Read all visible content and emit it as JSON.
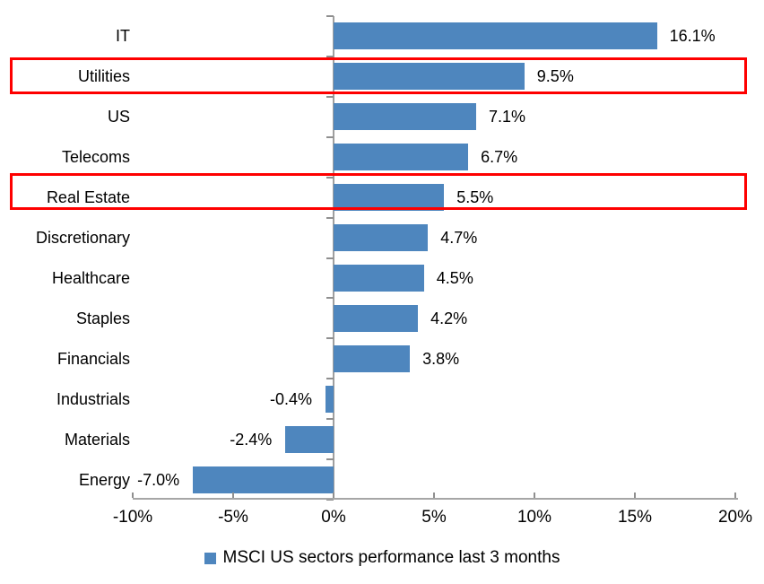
{
  "chart_data": {
    "type": "bar",
    "orientation": "horizontal",
    "title": "",
    "categories": [
      "IT",
      "Utilities",
      "US",
      "Telecoms",
      "Real Estate",
      "Discretionary",
      "Healthcare",
      "Staples",
      "Financials",
      "Industrials",
      "Materials",
      "Energy"
    ],
    "values": [
      16.1,
      9.5,
      7.1,
      6.7,
      5.5,
      4.7,
      4.5,
      4.2,
      3.8,
      -0.4,
      -2.4,
      -7.0
    ],
    "value_labels": [
      "16.1%",
      "9.5%",
      "7.1%",
      "6.7%",
      "5.5%",
      "4.7%",
      "4.5%",
      "4.2%",
      "3.8%",
      "-0.4%",
      "-2.4%",
      "-7.0%"
    ],
    "xlabel": "",
    "ylabel": "",
    "xlim": [
      -10,
      20
    ],
    "grid": false,
    "x_ticks": {
      "values": [
        -10,
        -5,
        0,
        5,
        10,
        15,
        20
      ],
      "labels": [
        "-10%",
        "-5%",
        "0%",
        "5%",
        "10%",
        "15%",
        "20%"
      ]
    },
    "bar_color": "#4e86be",
    "axis_color": "#a6a6a6",
    "highlight_color": "#fe0000",
    "highlighted_categories": [
      "Utilities",
      "Real Estate"
    ],
    "legend": {
      "position": "bottom-center",
      "entries": [
        {
          "label": "MSCI US sectors performance last 3 months",
          "color": "#4e86be"
        }
      ]
    }
  }
}
